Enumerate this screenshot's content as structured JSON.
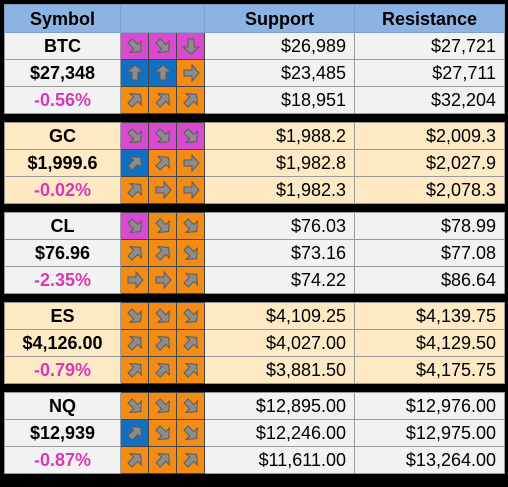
{
  "header": {
    "symbol": "Symbol",
    "support": "Support",
    "resistance": "Resistance"
  },
  "colors": {
    "orange": "#f28c14",
    "magenta": "#d94ad1",
    "blue": "#1070c4",
    "header_bg": "#8db3e2",
    "pct_text": "#d63ab5"
  },
  "groups": [
    {
      "symbol": "BTC",
      "price": "$27,348",
      "change": "-0.56%",
      "arrows": [
        [
          {
            "dir": "down-right",
            "color": "magenta"
          },
          {
            "dir": "down-right",
            "color": "magenta"
          },
          {
            "dir": "down",
            "color": "magenta"
          }
        ],
        [
          {
            "dir": "up",
            "color": "blue"
          },
          {
            "dir": "up",
            "color": "blue"
          },
          {
            "dir": "right",
            "color": "orange"
          }
        ],
        [
          {
            "dir": "up-right",
            "color": "orange"
          },
          {
            "dir": "up-right",
            "color": "orange"
          },
          {
            "dir": "up-right",
            "color": "orange"
          }
        ]
      ],
      "support": [
        "$26,989",
        "$23,485",
        "$18,951"
      ],
      "resistance": [
        "$27,721",
        "$27,711",
        "$32,204"
      ]
    },
    {
      "symbol": "GC",
      "price": "$1,999.6",
      "change": "-0.02%",
      "arrows": [
        [
          {
            "dir": "down-right",
            "color": "magenta"
          },
          {
            "dir": "down-right",
            "color": "magenta"
          },
          {
            "dir": "down-right",
            "color": "magenta"
          }
        ],
        [
          {
            "dir": "up-right",
            "color": "blue"
          },
          {
            "dir": "up-right",
            "color": "orange"
          },
          {
            "dir": "right",
            "color": "orange"
          }
        ],
        [
          {
            "dir": "up-right",
            "color": "orange"
          },
          {
            "dir": "right",
            "color": "orange"
          },
          {
            "dir": "right",
            "color": "orange"
          }
        ]
      ],
      "support": [
        "$1,988.2",
        "$1,982.8",
        "$1,982.3"
      ],
      "resistance": [
        "$2,009.3",
        "$2,027.9",
        "$2,078.3"
      ]
    },
    {
      "symbol": "CL",
      "price": "$76.96",
      "change": "-2.35%",
      "arrows": [
        [
          {
            "dir": "down-right",
            "color": "magenta"
          },
          {
            "dir": "down-right",
            "color": "orange"
          },
          {
            "dir": "down-right",
            "color": "orange"
          }
        ],
        [
          {
            "dir": "up-right",
            "color": "orange"
          },
          {
            "dir": "up-right",
            "color": "orange"
          },
          {
            "dir": "down-right",
            "color": "orange"
          }
        ],
        [
          {
            "dir": "right",
            "color": "orange"
          },
          {
            "dir": "right",
            "color": "orange"
          },
          {
            "dir": "up-right",
            "color": "orange"
          }
        ]
      ],
      "support": [
        "$76.03",
        "$73.16",
        "$74.22"
      ],
      "resistance": [
        "$78.99",
        "$77.08",
        "$86.64"
      ]
    },
    {
      "symbol": "ES",
      "price": "$4,126.00",
      "change": "-0.79%",
      "arrows": [
        [
          {
            "dir": "down-right",
            "color": "orange"
          },
          {
            "dir": "down-right",
            "color": "orange"
          },
          {
            "dir": "down-right",
            "color": "orange"
          }
        ],
        [
          {
            "dir": "up-right",
            "color": "orange"
          },
          {
            "dir": "up-right",
            "color": "orange"
          },
          {
            "dir": "up-right",
            "color": "orange"
          }
        ],
        [
          {
            "dir": "up-right",
            "color": "orange"
          },
          {
            "dir": "up-right",
            "color": "orange"
          },
          {
            "dir": "up-right",
            "color": "orange"
          }
        ]
      ],
      "support": [
        "$4,109.25",
        "$4,027.00",
        "$3,881.50"
      ],
      "resistance": [
        "$4,139.75",
        "$4,129.50",
        "$4,175.75"
      ]
    },
    {
      "symbol": "NQ",
      "price": "$12,939",
      "change": "-0.87%",
      "arrows": [
        [
          {
            "dir": "down-right",
            "color": "orange"
          },
          {
            "dir": "down-right",
            "color": "orange"
          },
          {
            "dir": "down-right",
            "color": "orange"
          }
        ],
        [
          {
            "dir": "up-right",
            "color": "blue"
          },
          {
            "dir": "down-right",
            "color": "orange"
          },
          {
            "dir": "down-right",
            "color": "orange"
          }
        ],
        [
          {
            "dir": "up-right",
            "color": "orange"
          },
          {
            "dir": "up-right",
            "color": "orange"
          },
          {
            "dir": "up-right",
            "color": "orange"
          }
        ]
      ],
      "support": [
        "$12,895.00",
        "$12,246.00",
        "$11,611.00"
      ],
      "resistance": [
        "$12,976.00",
        "$12,975.00",
        "$13,264.00"
      ]
    }
  ]
}
